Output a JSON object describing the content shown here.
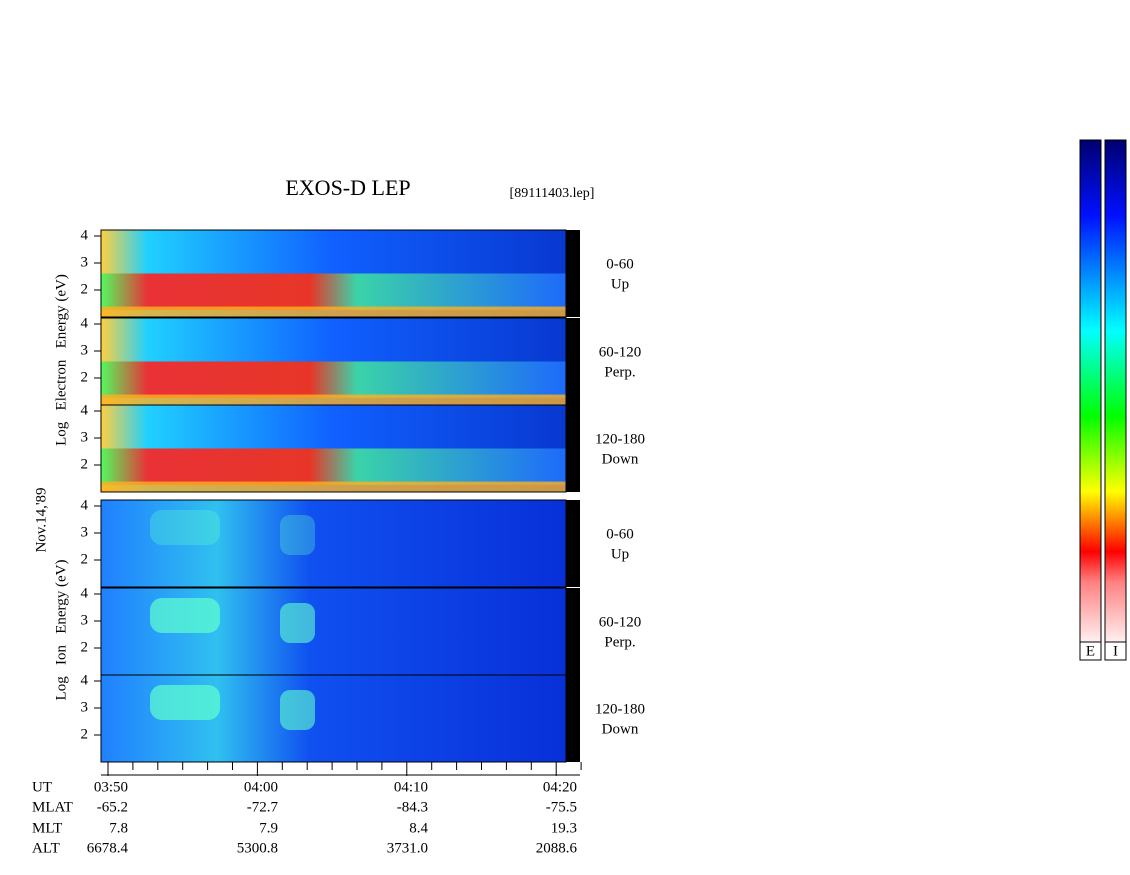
{
  "title": "EXOS-D LEP",
  "file": "[89111403.lep]",
  "date": "Nov.14,'89",
  "electron_axis_label": "Log   Electron   Energy (eV)",
  "ion_axis_label": "Log   Ion   Energy (eV)",
  "panels": [
    {
      "species": "electron",
      "ticks": [
        "4",
        "3",
        "2"
      ],
      "angle": "0-60",
      "direction": "Up"
    },
    {
      "species": "electron",
      "ticks": [
        "4",
        "3",
        "2"
      ],
      "angle": "60-120",
      "direction": "Perp."
    },
    {
      "species": "electron",
      "ticks": [
        "4",
        "3",
        "2"
      ],
      "angle": "120-180",
      "direction": "Down"
    },
    {
      "species": "ion",
      "ticks": [
        "4",
        "3",
        "2"
      ],
      "angle": "0-60",
      "direction": "Up"
    },
    {
      "species": "ion",
      "ticks": [
        "4",
        "3",
        "2"
      ],
      "angle": "60-120",
      "direction": "Perp."
    },
    {
      "species": "ion",
      "ticks": [
        "4",
        "3",
        "2"
      ],
      "angle": "120-180",
      "direction": "Down"
    }
  ],
  "rows": [
    {
      "label": "UT",
      "values": [
        "03:50",
        "04:00",
        "04:10",
        "04:20"
      ]
    },
    {
      "label": "MLAT",
      "values": [
        "-65.2",
        "-72.7",
        "-84.3",
        "-75.5"
      ]
    },
    {
      "label": "MLT",
      "values": [
        "7.8",
        "7.9",
        "8.4",
        "19.3"
      ]
    },
    {
      "label": "ALT",
      "values": [
        "6678.4",
        "5300.8",
        "3731.0",
        "2088.6"
      ]
    }
  ],
  "colorbar_labels": [
    "E",
    "I"
  ]
}
